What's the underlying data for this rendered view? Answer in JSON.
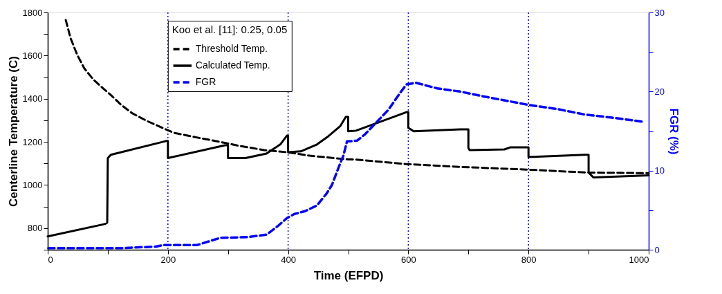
{
  "chart_data": {
    "type": "line",
    "xlabel": "Time (EFPD)",
    "ylabel": "Centerline  Temperature  (C)",
    "y2label": "FGR  (%)",
    "legend_title": "Koo et al. [11]: 0.25, 0.05",
    "legend": "top",
    "xlim": [
      0,
      1000
    ],
    "xticks": [
      0,
      {
        "value": 100,
        "label": null
      },
      200,
      {
        "value": 300,
        "label": null
      },
      400,
      {
        "value": 500,
        "label": null
      },
      600,
      {
        "value": 700,
        "label": null
      },
      800,
      {
        "value": 900,
        "label": null
      },
      1000
    ],
    "ylim": [
      700,
      1800
    ],
    "yticks": [
      {
        "value": 700,
        "label": null
      },
      800,
      {
        "value": 900,
        "label": null
      },
      1000,
      {
        "value": 1100,
        "label": null
      },
      1200,
      {
        "value": 1300,
        "label": null
      },
      1400,
      {
        "value": 1500,
        "label": null
      },
      1600,
      {
        "value": 1700,
        "label": null
      },
      1800
    ],
    "y2lim": [
      0,
      30
    ],
    "y2ticks": [
      0,
      {
        "value": 5,
        "label": null
      },
      10,
      {
        "value": 15,
        "label": null
      },
      20,
      {
        "value": 25,
        "label": null
      },
      30
    ],
    "grid": false,
    "ref_lines": [
      {
        "axis": "x",
        "value": 200,
        "color": "#0000ff",
        "line_style": "dotted"
      },
      {
        "axis": "x",
        "value": 400,
        "color": "#0000ff",
        "line_style": "dotted"
      },
      {
        "axis": "x",
        "value": 600,
        "color": "#0000ff",
        "line_style": "dotted"
      },
      {
        "axis": "x",
        "value": 800,
        "color": "#0000ff",
        "line_style": "dotted"
      }
    ],
    "series": [
      {
        "name": "Threshold Temp.",
        "color": "#000000",
        "line_style": "dashed",
        "x": [
          30,
          38,
          49,
          61,
          76,
          91,
          107,
          122,
          141,
          165,
          191,
          210,
          249,
          287,
          314,
          360,
          398,
          436,
          494,
          513,
          597,
          686,
          801,
          896,
          1000
        ],
        "values": [
          1765,
          1681,
          1604,
          1540,
          1489,
          1451,
          1412,
          1372,
          1332,
          1297,
          1265,
          1242,
          1220,
          1200,
          1184,
          1162,
          1152,
          1136,
          1120,
          1118,
          1097,
          1084,
          1071,
          1058,
          1055
        ]
      },
      {
        "name": "Calculated Temp.",
        "color": "#000000",
        "line_style": "solid",
        "x": [
          0,
          95,
          99,
          100,
          105,
          197,
          200,
          200,
          295,
          300,
          300,
          329,
          364,
          387,
          398,
          400,
          400,
          421,
          448,
          467,
          487,
          496,
          500,
          500,
          513,
          597,
          600,
          600,
          609,
          686,
          700,
          700,
          702,
          760,
          770,
          800,
          800,
          858,
          893,
          900,
          900,
          908,
          977,
          1000
        ],
        "values": [
          762,
          819,
          825,
          1125,
          1140,
          1204,
          1204,
          1125,
          1184,
          1184,
          1125,
          1125,
          1146,
          1188,
          1229,
          1229,
          1152,
          1156,
          1188,
          1226,
          1274,
          1316,
          1316,
          1249,
          1252,
          1338,
          1338,
          1265,
          1249,
          1258,
          1258,
          1172,
          1162,
          1165,
          1175,
          1175,
          1130,
          1136,
          1140,
          1140,
          1058,
          1035,
          1042,
          1045
        ]
      },
      {
        "name": "FGR",
        "color": "#0000ff",
        "line_style": "dashed",
        "axis": "y2",
        "x": [
          1,
          122,
          180,
          194,
          249,
          287,
          333,
          364,
          383,
          398,
          410,
          429,
          448,
          464,
          473,
          484,
          492,
          498,
          502,
          515,
          528,
          567,
          586,
          597,
          613,
          648,
          686,
          724,
          766,
          801,
          847,
          893,
          939,
          989
        ],
        "values": [
          0.2,
          0.2,
          0.4,
          0.6,
          0.6,
          1.5,
          1.6,
          1.9,
          3.0,
          4.0,
          4.5,
          4.9,
          5.6,
          7.1,
          8.2,
          10.4,
          11.9,
          13.7,
          13.7,
          13.8,
          14.6,
          17.7,
          19.8,
          20.9,
          21.1,
          20.4,
          20.0,
          19.4,
          18.8,
          18.3,
          17.8,
          17.1,
          16.7,
          16.2
        ]
      }
    ]
  }
}
